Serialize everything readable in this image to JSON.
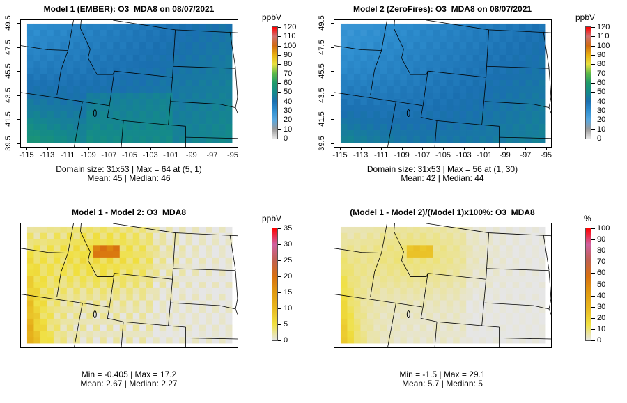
{
  "chart_data": [
    {
      "type": "heatmap",
      "title": "Model 1 (EMBER): O3_MDA8 on 08/07/2021",
      "x_ticks": [
        "-115",
        "-113",
        "-111",
        "-109",
        "-107",
        "-105",
        "-103",
        "-101",
        "-99",
        "-97",
        "-95"
      ],
      "y_ticks": [
        "39.5",
        "41.5",
        "43.5",
        "45.5",
        "47.5",
        "49.5"
      ],
      "colorbar": {
        "unit": "ppbV",
        "ticks": [
          "0",
          "10",
          "20",
          "30",
          "40",
          "50",
          "60",
          "70",
          "80",
          "90",
          "100",
          "110",
          "120"
        ],
        "range": [
          0,
          120
        ]
      },
      "stats": [
        "Domain size: 31x53 | Max = 64 at (5, 1)",
        "Mean: 45 |  Median: 46"
      ]
    },
    {
      "type": "heatmap",
      "title": "Model 2 (ZeroFires): O3_MDA8 on 08/07/2021",
      "x_ticks": [
        "-115",
        "-113",
        "-111",
        "-109",
        "-107",
        "-105",
        "-103",
        "-101",
        "-99",
        "-97",
        "-95"
      ],
      "y_ticks": [
        "39.5",
        "41.5",
        "43.5",
        "45.5",
        "47.5",
        "49.5"
      ],
      "colorbar": {
        "unit": "ppbV",
        "ticks": [
          "0",
          "10",
          "20",
          "30",
          "40",
          "50",
          "60",
          "70",
          "80",
          "90",
          "100",
          "110",
          "120"
        ],
        "range": [
          0,
          120
        ]
      },
      "stats": [
        "Domain size: 31x53 | Max = 56 at (1, 30)",
        "Mean: 42 |  Median: 44"
      ]
    },
    {
      "type": "heatmap",
      "title": "Model 1 - Model 2: O3_MDA8",
      "colorbar": {
        "unit": "ppbV",
        "ticks": [
          "0",
          "5",
          "10",
          "15",
          "20",
          "25",
          "30",
          "35"
        ],
        "range": [
          0,
          35
        ]
      },
      "stats": [
        "Min = -0.405 | Max = 17.2",
        "Mean: 2.67 |  Median: 2.27"
      ]
    },
    {
      "type": "heatmap",
      "title": "(Model 1 - Model 2)/(Model 1)x100%: O3_MDA8",
      "colorbar": {
        "unit": "%",
        "ticks": [
          "0",
          "10",
          "20",
          "30",
          "40",
          "50",
          "60",
          "70",
          "80",
          "90",
          "100"
        ],
        "range": [
          0,
          100
        ]
      },
      "stats": [
        "Min = -1.5 | Max = 29.1",
        "Mean: 5.7 |  Median: 5"
      ]
    }
  ],
  "colors": {
    "ozone_scale": [
      "#e6e6e6",
      "#9a9a9a",
      "#58a8e0",
      "#2f8fd0",
      "#1a6fb0",
      "#148a8a",
      "#1e9a6a",
      "#5cb848",
      "#e8e040",
      "#e8b010",
      "#d06a10",
      "#d07070",
      "#ff0000"
    ],
    "diff_scale": [
      "#e6e6e6",
      "#f0e040",
      "#e8b820",
      "#e09a10",
      "#d87010",
      "#c06050",
      "#d060a0",
      "#ff0000"
    ]
  }
}
